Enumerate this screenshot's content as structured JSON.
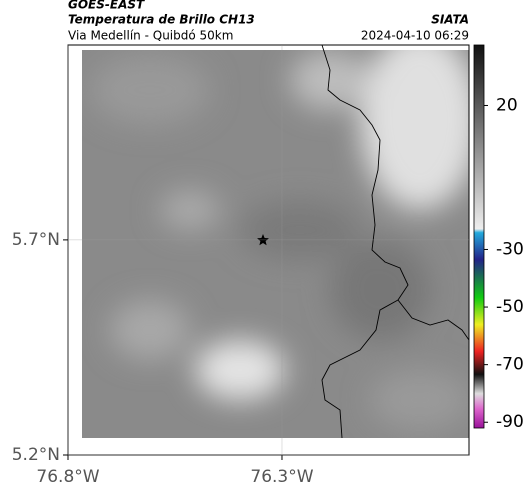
{
  "header": {
    "title": "GOES-EAST",
    "subtitle": "Temperatura de Brillo CH13",
    "route": "Via Medellín - Quibdó 50km",
    "source": "SIATA",
    "timestamp": "2024-04-10 06:29"
  },
  "map": {
    "xlim": [
      -76.8,
      -75.863
    ],
    "ylim": [
      5.2,
      6.153
    ],
    "xticks": [
      {
        "value": -76.8,
        "label": "76.8°W"
      },
      {
        "value": -76.3,
        "label": "76.3°W"
      }
    ],
    "yticks": [
      {
        "value": 5.2,
        "label": "5.2°N"
      },
      {
        "value": 5.7,
        "label": "5.7°N"
      }
    ],
    "grid": true
  },
  "colorbar": {
    "clim": [
      41,
      -92
    ],
    "ticks": [
      20,
      -30,
      -50,
      -70,
      -90
    ]
  }
}
